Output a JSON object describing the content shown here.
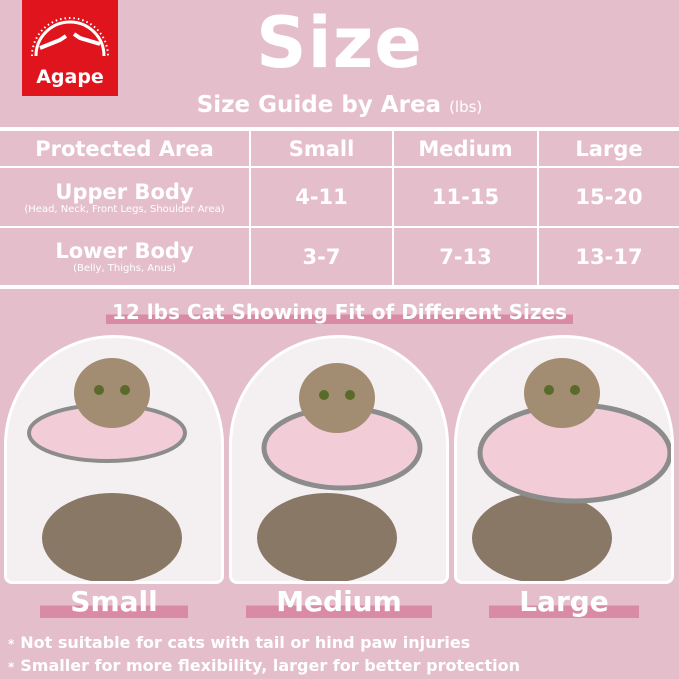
{
  "brand": {
    "logo_text": "Agape",
    "color": "#e0141c"
  },
  "title": "Size",
  "subtitle": {
    "main": "Size Guide by Area",
    "unit": "(lbs)"
  },
  "table": {
    "headers": [
      "Protected Area",
      "Small",
      "Medium",
      "Large"
    ],
    "rows": [
      {
        "area": "Upper Body",
        "detail": "(Head, Neck, Front Legs, Shoulder Area)",
        "values": [
          "4-11",
          "11-15",
          "15-20"
        ]
      },
      {
        "area": "Lower Body",
        "detail": "(Belly, Thighs, Anus)",
        "values": [
          "3-7",
          "7-13",
          "13-17"
        ]
      }
    ]
  },
  "section_title": "12 lbs Cat Showing Fit of Different Sizes",
  "photos": [
    {
      "label": "Small"
    },
    {
      "label": "Medium"
    },
    {
      "label": "Large"
    }
  ],
  "notes": [
    "Not suitable for cats with tail or hind paw injuries",
    "Smaller for more flexibility, larger for better protection"
  ]
}
